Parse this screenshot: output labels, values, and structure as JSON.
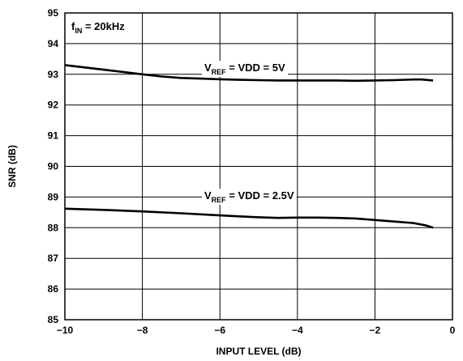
{
  "chart_data": {
    "type": "line",
    "title": "",
    "xlabel": "INPUT LEVEL (dB)",
    "ylabel": "SNR (dB)",
    "xlim": [
      -10,
      0
    ],
    "ylim": [
      85,
      95
    ],
    "x_ticks": [
      -10,
      -8,
      -6,
      -4,
      -2,
      0
    ],
    "x_tick_labels": [
      "−10",
      "−8",
      "−6",
      "−4",
      "−2",
      "0"
    ],
    "y_ticks": [
      85,
      86,
      87,
      88,
      89,
      90,
      91,
      92,
      93,
      94,
      95
    ],
    "y_tick_labels": [
      "85",
      "86",
      "87",
      "88",
      "89",
      "90",
      "91",
      "92",
      "93",
      "94",
      "95"
    ],
    "grid": true,
    "condition_label": {
      "main": "f",
      "sub": "IN",
      "rest": " = 20kHz"
    },
    "series": [
      {
        "label": {
          "main": "V",
          "sub": "REF",
          "rest": " = VDD = 5V"
        },
        "x": [
          -10,
          -9,
          -8,
          -7.5,
          -7,
          -6.5,
          -6,
          -5.5,
          -5,
          -4.5,
          -4,
          -3.5,
          -3,
          -2.5,
          -2,
          -1.5,
          -1,
          -0.8,
          -0.5
        ],
        "y": [
          93.3,
          93.15,
          93.0,
          92.93,
          92.88,
          92.86,
          92.84,
          92.82,
          92.81,
          92.8,
          92.8,
          92.8,
          92.8,
          92.79,
          92.8,
          92.81,
          92.83,
          92.83,
          92.8
        ]
      },
      {
        "label": {
          "main": "V",
          "sub": "REF",
          "rest": " = VDD = 2.5V"
        },
        "x": [
          -10,
          -9,
          -8,
          -7,
          -6,
          -5.5,
          -5,
          -4.5,
          -4,
          -3.5,
          -3,
          -2.5,
          -2,
          -1.5,
          -1,
          -0.7,
          -0.5
        ],
        "y": [
          88.62,
          88.58,
          88.53,
          88.47,
          88.4,
          88.37,
          88.34,
          88.32,
          88.33,
          88.33,
          88.32,
          88.3,
          88.25,
          88.2,
          88.15,
          88.08,
          88.0
        ]
      }
    ]
  }
}
